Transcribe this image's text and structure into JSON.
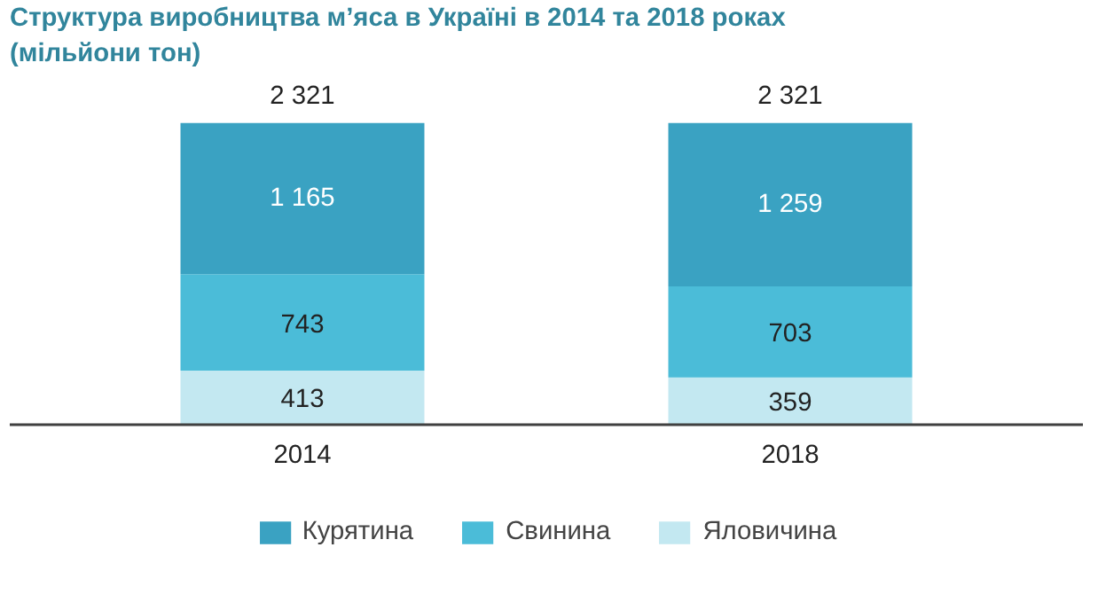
{
  "chart_data": {
    "type": "bar",
    "stacked": true,
    "title": "Структура виробництва м’яса в Україні в 2014 та 2018 роках",
    "subtitle": "(мільйони тон)",
    "categories": [
      "2014",
      "2018"
    ],
    "series": [
      {
        "name": "Яловичина",
        "color": "#c3e8f1",
        "values": [
          413,
          359
        ],
        "value_labels": [
          "413",
          "359"
        ]
      },
      {
        "name": "Свинина",
        "color": "#4bbcd8",
        "values": [
          743,
          703
        ],
        "value_labels": [
          "743",
          "703"
        ]
      },
      {
        "name": "Курятина",
        "color": "#3aa2c2",
        "values": [
          1165,
          1259
        ],
        "value_labels": [
          "1 165",
          "1 259"
        ]
      }
    ],
    "totals": [
      "2 321",
      "2 321"
    ],
    "legend": "bottom"
  }
}
